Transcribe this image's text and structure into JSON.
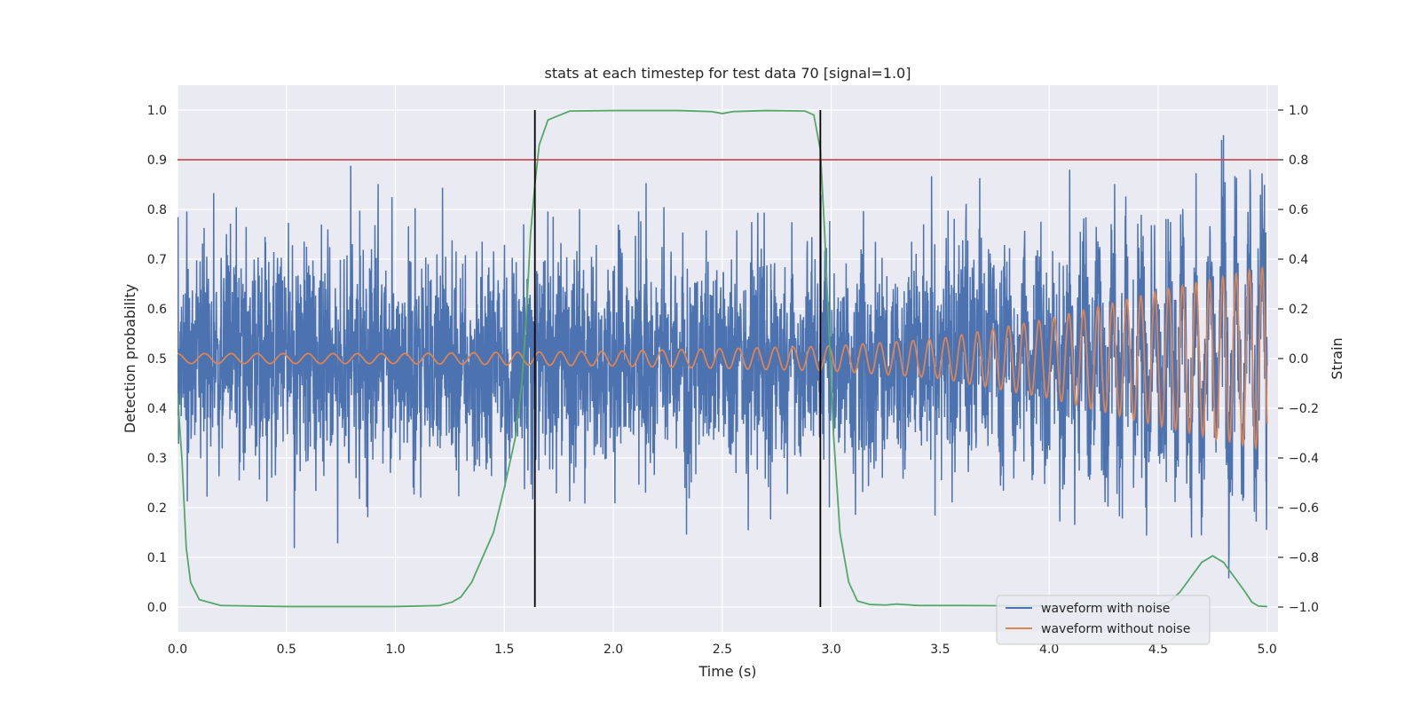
{
  "chart_data": {
    "type": "line",
    "title": "stats at each timestep for test data 70 [signal=1.0]",
    "xlabel": "Time (s)",
    "ylabel_left": "Detection probability",
    "ylabel_right": "Strain",
    "xlim": [
      0.0,
      5.05
    ],
    "ylim_left": [
      -0.05,
      1.05
    ],
    "ylim_right": [
      -1.1,
      1.1
    ],
    "x_ticks": [
      "0.0",
      "0.5",
      "1.0",
      "1.5",
      "2.0",
      "2.5",
      "3.0",
      "3.5",
      "4.0",
      "4.5",
      "5.0"
    ],
    "y_ticks_left": [
      "0.0",
      "0.1",
      "0.2",
      "0.3",
      "0.4",
      "0.5",
      "0.6",
      "0.7",
      "0.8",
      "0.9",
      "1.0"
    ],
    "y_ticks_right": [
      "−1.0",
      "−0.8",
      "−0.6",
      "−0.4",
      "−0.2",
      "0.0",
      "0.2",
      "0.4",
      "0.6",
      "0.8",
      "1.0"
    ],
    "grid": true,
    "legend_position": "lower-right",
    "threshold": {
      "value": 0.9,
      "axis": "left",
      "color": "#c44e52"
    },
    "detection_markers": {
      "x": [
        1.64,
        2.95
      ],
      "y_range": [
        0.0,
        1.0
      ],
      "color": "#000000"
    },
    "series": [
      {
        "name": "waveform with noise",
        "axis": "right",
        "color": "#4c72b0",
        "kind": "noise",
        "x_range": [
          0.0,
          5.0
        ],
        "sample_count": 4096,
        "std": 0.22,
        "y_range": [
          -0.98,
          1.0
        ]
      },
      {
        "name": "waveform without noise",
        "axis": "right",
        "color": "#dd8452",
        "kind": "chirp",
        "x_range": [
          0.0,
          5.0
        ],
        "points": [
          [
            0.0,
            0.02
          ],
          [
            1.0,
            0.02
          ],
          [
            2.0,
            0.03
          ],
          [
            3.0,
            0.05
          ],
          [
            3.5,
            0.08
          ],
          [
            4.0,
            0.16
          ],
          [
            4.5,
            0.27
          ],
          [
            5.0,
            0.37
          ]
        ]
      },
      {
        "color": "#55a868",
        "axis": "left",
        "kind": "line",
        "points": [
          [
            0.0,
            0.43
          ],
          [
            0.02,
            0.3
          ],
          [
            0.04,
            0.12
          ],
          [
            0.06,
            0.05
          ],
          [
            0.1,
            0.015
          ],
          [
            0.2,
            0.003
          ],
          [
            0.5,
            0.001
          ],
          [
            1.0,
            0.001
          ],
          [
            1.2,
            0.003
          ],
          [
            1.26,
            0.01
          ],
          [
            1.3,
            0.02
          ],
          [
            1.35,
            0.05
          ],
          [
            1.4,
            0.1
          ],
          [
            1.45,
            0.15
          ],
          [
            1.5,
            0.24
          ],
          [
            1.55,
            0.34
          ],
          [
            1.58,
            0.45
          ],
          [
            1.6,
            0.58
          ],
          [
            1.62,
            0.75
          ],
          [
            1.64,
            0.85
          ],
          [
            1.66,
            0.93
          ],
          [
            1.7,
            0.98
          ],
          [
            1.8,
            0.998
          ],
          [
            2.0,
            0.999
          ],
          [
            2.3,
            0.999
          ],
          [
            2.45,
            0.997
          ],
          [
            2.5,
            0.993
          ],
          [
            2.55,
            0.997
          ],
          [
            2.7,
            0.999
          ],
          [
            2.88,
            0.998
          ],
          [
            2.92,
            0.99
          ],
          [
            2.95,
            0.92
          ],
          [
            2.97,
            0.75
          ],
          [
            2.99,
            0.55
          ],
          [
            3.01,
            0.35
          ],
          [
            3.04,
            0.15
          ],
          [
            3.08,
            0.05
          ],
          [
            3.12,
            0.012
          ],
          [
            3.18,
            0.005
          ],
          [
            3.25,
            0.004
          ],
          [
            3.3,
            0.006
          ],
          [
            3.4,
            0.003
          ],
          [
            3.6,
            0.003
          ],
          [
            4.0,
            0.002
          ],
          [
            4.5,
            0.003
          ],
          [
            4.55,
            0.01
          ],
          [
            4.6,
            0.03
          ],
          [
            4.65,
            0.06
          ],
          [
            4.7,
            0.09
          ],
          [
            4.75,
            0.103
          ],
          [
            4.8,
            0.09
          ],
          [
            4.85,
            0.06
          ],
          [
            4.9,
            0.03
          ],
          [
            4.93,
            0.01
          ],
          [
            4.96,
            0.002
          ],
          [
            5.0,
            0.001
          ]
        ]
      }
    ]
  }
}
